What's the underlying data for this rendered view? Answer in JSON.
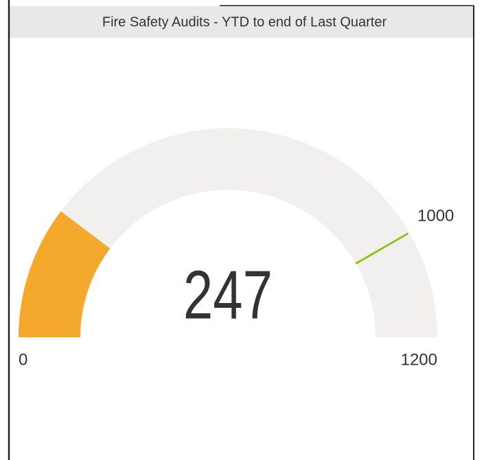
{
  "chart_data": {
    "type": "gauge",
    "title": "Fire Safety Audits - YTD to end of Last Quarter",
    "value": 247,
    "min": 0,
    "max": 1200,
    "target": 1000,
    "color": "#f5a92c",
    "track_color": "#f1f0ef",
    "target_color": "#8dc21f"
  }
}
